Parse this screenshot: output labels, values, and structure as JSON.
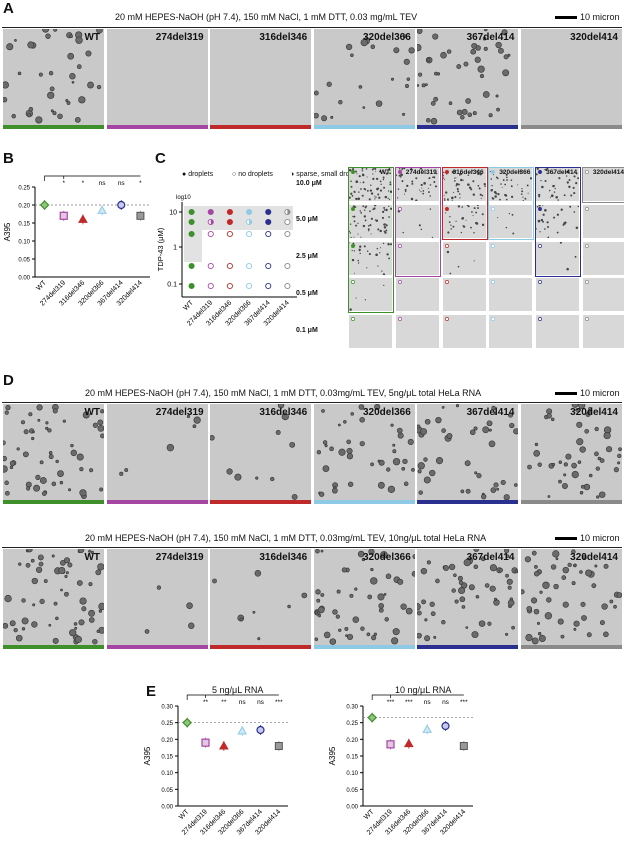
{
  "panel_labels": {
    "a": "A",
    "b": "B",
    "c": "C",
    "d": "D",
    "e": "E"
  },
  "colors": {
    "WT": "#3f8f2a",
    "274del319": "#a546a3",
    "316del346": "#c0292a",
    "320del366": "#8ecae6",
    "367del414": "#2b2f8f",
    "320del414": "#8a8a8a"
  },
  "variants": [
    "WT",
    "274del319",
    "316del346",
    "320del366",
    "367del414",
    "320del414"
  ],
  "panelA": {
    "condition": "20 mM HEPES-NaOH (pH 7.4), 150 mM NaCl, 1 mM DTT, 0.03 mg/mL TEV",
    "scale": "10 micron",
    "density": [
      38,
      0,
      0,
      22,
      45,
      0
    ]
  },
  "panelB": {
    "ylabel": "A395",
    "yticks": [
      "0.00",
      "0.05",
      "0.10",
      "0.15",
      "0.20",
      "0.25"
    ],
    "sig": [
      "*",
      "*",
      "ns",
      "ns",
      "*"
    ],
    "chart_data": {
      "type": "scatter",
      "categories": [
        "WT",
        "274del319",
        "316del346",
        "320del366",
        "367del414",
        "320del414"
      ],
      "values": [
        0.2,
        0.17,
        0.16,
        0.185,
        0.2,
        0.17
      ],
      "ylabel": "A395",
      "ylim": [
        0,
        0.25
      ]
    }
  },
  "panelC": {
    "legend": {
      "droplets": "droplets",
      "no_droplets": "no droplets",
      "sparse": "sparse, small droplets"
    },
    "ylabel": "TDP-43 (μM)",
    "log": "log10",
    "yticks": [
      "10",
      "1",
      "0.1"
    ],
    "concentrations": [
      "10.0 μM",
      "5.0 μM",
      "2.5 μM",
      "0.5 μM",
      "0.1 μM"
    ]
  },
  "panelD1": {
    "condition": "20 mM HEPES-NaOH (pH 7.4), 150 mM NaCl, 1 mM DTT, 0.03mg/mL TEV, 5ng/μL total HeLa RNA",
    "scale": "10 micron",
    "density": [
      55,
      6,
      10,
      40,
      42,
      48
    ]
  },
  "panelD2": {
    "condition": "20 mM HEPES-NaOH (pH 7.4), 150 mM NaCl, 1 mM DTT, 0.03mg/mL TEV, 10ng/μL total HeLa RNA",
    "scale": "10 micron",
    "density": [
      60,
      4,
      8,
      50,
      55,
      52
    ]
  },
  "panelE": {
    "left": {
      "title": "5 ng/μL RNA",
      "ylabel": "A395",
      "sig": [
        "**",
        "**",
        "ns",
        "ns",
        "***"
      ]
    },
    "right": {
      "title": "10 ng/μL RNA",
      "ylabel": "A395",
      "sig": [
        "***",
        "***",
        "ns",
        "ns",
        "***"
      ]
    },
    "yticks": [
      "0.00",
      "0.05",
      "0.10",
      "0.15",
      "0.20",
      "0.25",
      "0.30"
    ],
    "chart_data": [
      {
        "type": "scatter",
        "title": "5 ng/μL RNA",
        "categories": [
          "WT",
          "274del319",
          "316del346",
          "320del366",
          "367del414",
          "320del414"
        ],
        "values": [
          0.25,
          0.19,
          0.18,
          0.225,
          0.228,
          0.18
        ],
        "ylabel": "A395",
        "ylim": [
          0,
          0.3
        ]
      },
      {
        "type": "scatter",
        "title": "10 ng/μL RNA",
        "categories": [
          "WT",
          "274del319",
          "316del346",
          "320del366",
          "367del414",
          "320del414"
        ],
        "values": [
          0.265,
          0.185,
          0.187,
          0.23,
          0.24,
          0.18
        ],
        "ylabel": "A395",
        "ylim": [
          0,
          0.3
        ]
      }
    ]
  }
}
